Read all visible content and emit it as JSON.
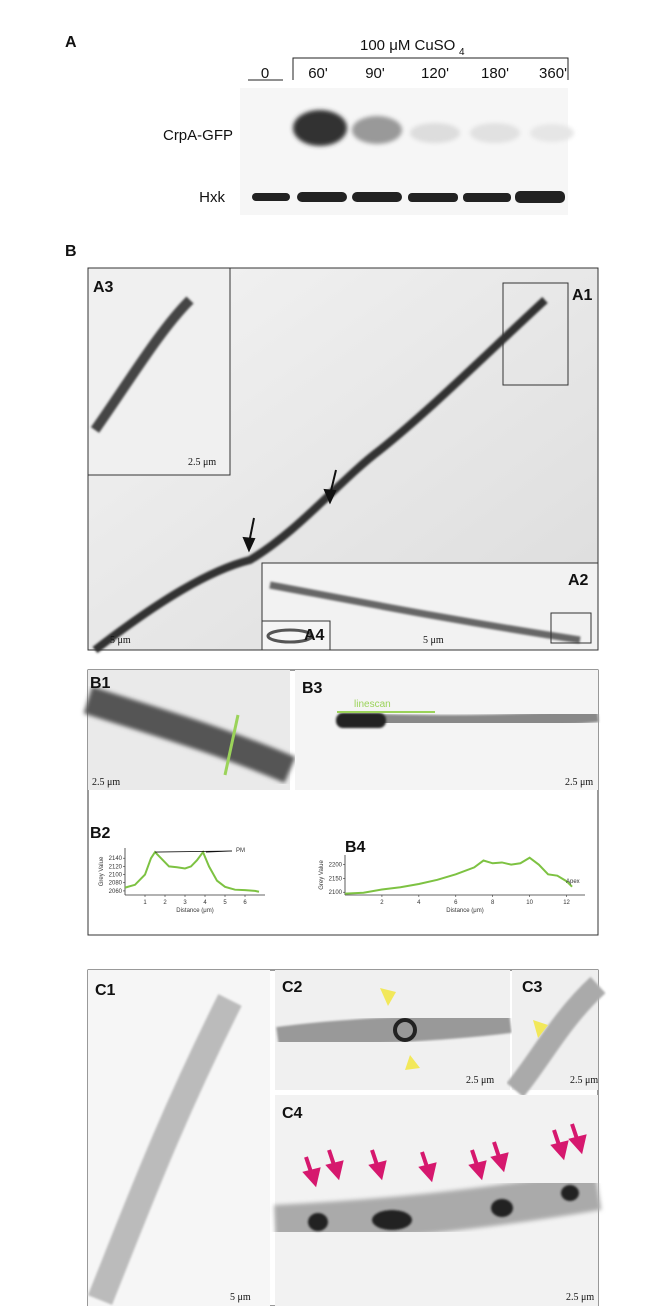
{
  "panel_a": {
    "label": "A",
    "treatment": "100 μM CuSO",
    "treatment_subscript": "4",
    "lanes": [
      "0",
      "60'",
      "90'",
      "120'",
      "180'",
      "360'"
    ],
    "rows": [
      "CrpA-GFP",
      "Hxk"
    ]
  },
  "panel_b": {
    "label": "B",
    "insets": {
      "a3": "A3",
      "a1": "A1",
      "a2": "A2",
      "a4": "A4"
    },
    "scale_bars": [
      "2.5 μm",
      "5 μm",
      "5 μm"
    ]
  },
  "panel_b_sub": {
    "b1": {
      "label": "B1",
      "scale_bar": "2.5 μm"
    },
    "b3": {
      "label": "B3",
      "annotation": "linescan",
      "scale_bar": "2.5 μm"
    },
    "b2": {
      "label": "B2",
      "type": "line",
      "x_label": "Distance (μm)",
      "y_label": "Grey Value",
      "annotation": "PM",
      "color": "#7dc242",
      "x": [
        0,
        0.5,
        1.0,
        1.3,
        1.5,
        1.8,
        2.2,
        2.6,
        3.0,
        3.3,
        3.6,
        3.9,
        4.2,
        4.6,
        5.0,
        5.5,
        6.0,
        6.5,
        6.7
      ],
      "values": [
        2068,
        2075,
        2100,
        2140,
        2155,
        2140,
        2120,
        2118,
        2115,
        2120,
        2135,
        2155,
        2120,
        2085,
        2070,
        2063,
        2062,
        2060,
        2058
      ],
      "xlim": [
        0,
        7
      ],
      "ylim": [
        2050,
        2165
      ],
      "xticks": [
        1,
        2,
        3,
        4,
        5,
        6
      ],
      "yticks": [
        2060,
        2080,
        2100,
        2120,
        2140
      ]
    },
    "b4": {
      "label": "B4",
      "type": "line",
      "x_label": "Distance (μm)",
      "y_label": "Grey Value",
      "annotation": "Apex",
      "color": "#7dc242",
      "x": [
        0,
        1,
        2,
        3,
        4,
        5,
        6,
        7,
        7.5,
        8,
        8.5,
        9,
        9.5,
        10,
        10.5,
        11,
        11.5,
        12,
        12.3
      ],
      "values": [
        2095,
        2098,
        2110,
        2118,
        2130,
        2145,
        2165,
        2190,
        2215,
        2205,
        2208,
        2200,
        2205,
        2225,
        2200,
        2165,
        2160,
        2140,
        2120
      ],
      "xlim": [
        0,
        13
      ],
      "ylim": [
        2090,
        2235
      ],
      "xticks": [
        2,
        4,
        6,
        8,
        10,
        12
      ],
      "yticks": [
        2100,
        2150,
        2200
      ]
    }
  },
  "panel_c": {
    "c1": {
      "label": "C1",
      "scale_bar": "5 μm"
    },
    "c2": {
      "label": "C2",
      "scale_bar": "2.5 μm"
    },
    "c3": {
      "label": "C3",
      "scale_bar": "2.5 μm"
    },
    "c4": {
      "label": "C4",
      "scale_bar": "2.5 μm"
    }
  }
}
